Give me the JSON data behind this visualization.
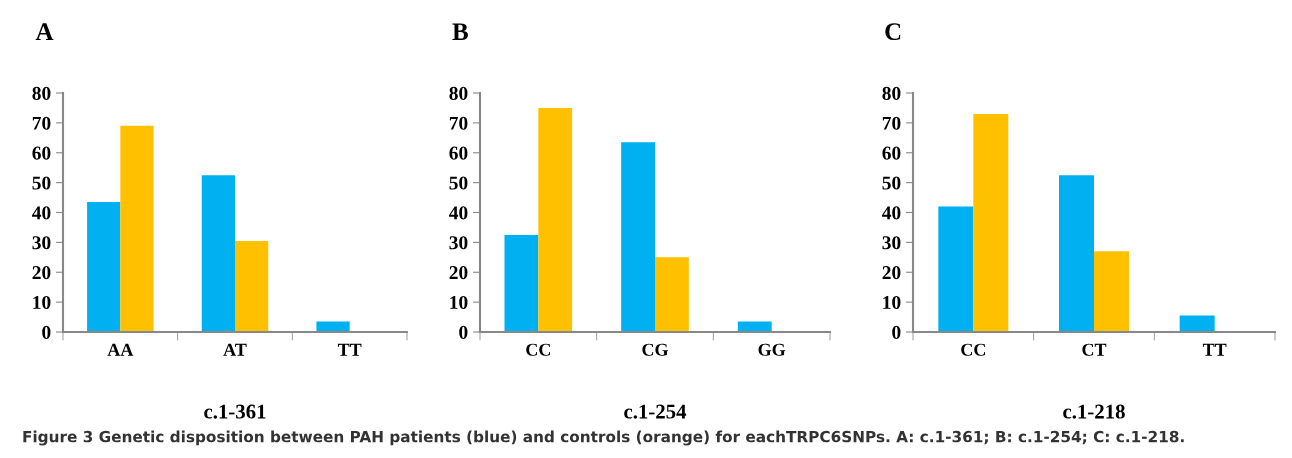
{
  "chart_data": [
    {
      "type": "bar",
      "title": "A",
      "xlabel": "c.1-361",
      "categories": [
        "AA",
        "AT",
        "TT"
      ],
      "series": [
        {
          "color": "#00b0f0",
          "values": [
            43.5,
            52.5,
            3.5
          ]
        },
        {
          "color": "#ffc000",
          "values": [
            69,
            30.5,
            null
          ]
        }
      ],
      "ylim": [
        0,
        80
      ],
      "yticks": [
        0,
        10,
        20,
        30,
        40,
        50,
        60,
        70,
        80
      ],
      "grid": false,
      "annotations": [
        "Figure 3 Genetic disposition between PAH patients (blue) and controls (orange) for eachTRPC6SNPs. A: c.1-361; B: c.1-254; C: c.1-218."
      ]
    },
    {
      "type": "bar",
      "title": "B",
      "xlabel": "c.1-254",
      "categories": [
        "CC",
        "CG",
        "GG"
      ],
      "series": [
        {
          "color": "#00b0f0",
          "values": [
            32.5,
            63.5,
            3.5
          ]
        },
        {
          "color": "#ffc000",
          "values": [
            75,
            25,
            null
          ]
        }
      ],
      "ylim": [
        0,
        80
      ],
      "yticks": [
        0,
        10,
        20,
        30,
        40,
        50,
        60,
        70,
        80
      ],
      "grid": false
    },
    {
      "type": "bar",
      "title": "C",
      "xlabel": "c.1-218",
      "categories": [
        "CC",
        "CT",
        "TT"
      ],
      "series": [
        {
          "color": "#00b0f0",
          "values": [
            42,
            52.5,
            5.5
          ]
        },
        {
          "color": "#ffc000",
          "values": [
            73,
            27,
            null
          ]
        }
      ],
      "ylim": [
        0,
        80
      ],
      "yticks": [
        0,
        10,
        20,
        30,
        40,
        50,
        60,
        70,
        80
      ],
      "grid": false
    }
  ]
}
